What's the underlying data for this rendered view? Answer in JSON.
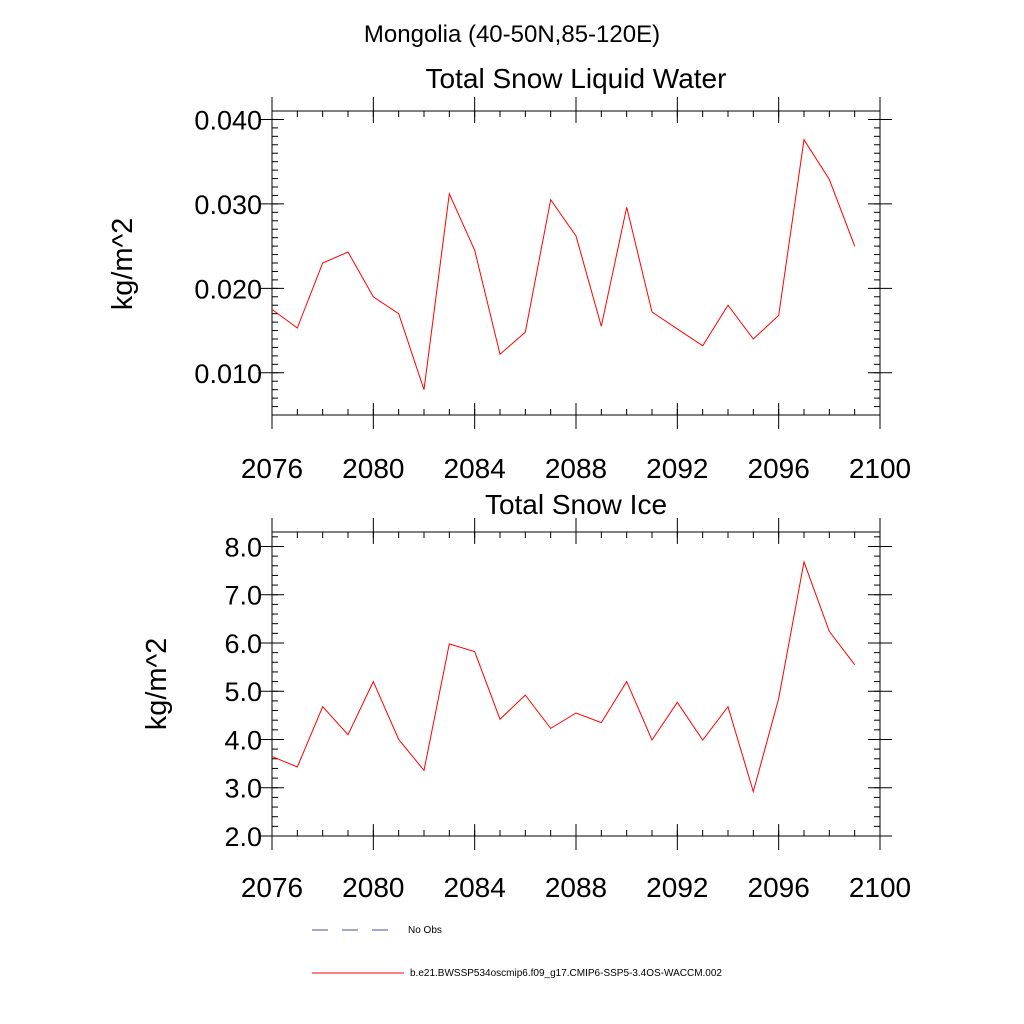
{
  "figure_title": "Mongolia (40-50N,85-120E)",
  "colors": {
    "model_line": "#ff0000",
    "obs_line": "#4a4aa0",
    "axes": "#000000"
  },
  "legend": {
    "entries": [
      {
        "label": "No Obs",
        "style": "dashed",
        "color": "#4a4aa0"
      },
      {
        "label": "b.e21.BWSSP534oscmip6.f09_g17.CMIP6-SSP5-3.4OS-WACCM.002",
        "style": "solid",
        "color": "#ff0000"
      }
    ]
  },
  "chart_data": [
    {
      "type": "line",
      "title": "Total Snow Liquid Water",
      "xlabel": "",
      "ylabel": "kg/m^2",
      "xlim": [
        2076,
        2100
      ],
      "ylim": [
        0.005,
        0.041
      ],
      "xticks": [
        "2076",
        "2080",
        "2084",
        "2088",
        "2092",
        "2096",
        "2100"
      ],
      "yticks": [
        "0.010",
        "0.020",
        "0.030",
        "0.040"
      ],
      "x": [
        2076,
        2077,
        2078,
        2079,
        2080,
        2081,
        2082,
        2083,
        2084,
        2085,
        2086,
        2087,
        2088,
        2089,
        2090,
        2091,
        2092,
        2093,
        2094,
        2095,
        2096,
        2097,
        2098,
        2099
      ],
      "series": [
        {
          "name": "b.e21.BWSSP534oscmip6.f09_g17.CMIP6-SSP5-3.4OS-WACCM.002",
          "values": [
            0.0175,
            0.0153,
            0.023,
            0.0243,
            0.019,
            0.017,
            0.008,
            0.0312,
            0.0245,
            0.0122,
            0.0148,
            0.0305,
            0.0262,
            0.0155,
            0.0296,
            0.0172,
            0.0152,
            0.0132,
            0.018,
            0.014,
            0.0168,
            0.0376,
            0.0329,
            0.025
          ]
        }
      ]
    },
    {
      "type": "line",
      "title": "Total Snow Ice",
      "xlabel": "",
      "ylabel": "kg/m^2",
      "xlim": [
        2076,
        2100
      ],
      "ylim": [
        2.0,
        8.3
      ],
      "xticks": [
        "2076",
        "2080",
        "2084",
        "2088",
        "2092",
        "2096",
        "2100"
      ],
      "yticks": [
        "2.0",
        "3.0",
        "4.0",
        "5.0",
        "6.0",
        "7.0",
        "8.0"
      ],
      "x": [
        2076,
        2077,
        2078,
        2079,
        2080,
        2081,
        2082,
        2083,
        2084,
        2085,
        2086,
        2087,
        2088,
        2089,
        2090,
        2091,
        2092,
        2093,
        2094,
        2095,
        2096,
        2097,
        2098,
        2099
      ],
      "series": [
        {
          "name": "b.e21.BWSSP534oscmip6.f09_g17.CMIP6-SSP5-3.4OS-WACCM.002",
          "values": [
            3.65,
            3.43,
            4.68,
            4.1,
            5.2,
            4.0,
            3.36,
            5.98,
            5.82,
            4.42,
            4.92,
            4.23,
            4.55,
            4.35,
            5.2,
            3.99,
            4.77,
            3.99,
            4.68,
            2.92,
            4.85,
            7.68,
            6.24,
            5.55
          ]
        }
      ]
    }
  ]
}
